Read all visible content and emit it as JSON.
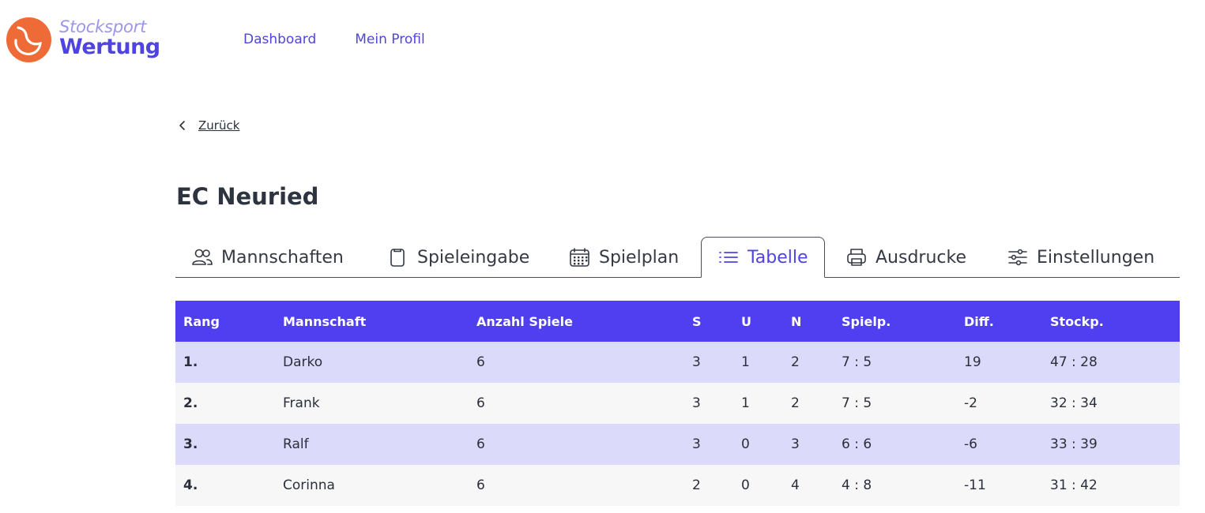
{
  "brand": {
    "line1": "Stocksport",
    "line2": "Wertung",
    "accent": "#4f44e0",
    "logo_color": "#ee6a36"
  },
  "nav": [
    {
      "label": "Dashboard"
    },
    {
      "label": "Mein Profil"
    }
  ],
  "back_label": "Zurück",
  "page_title": "EC Neuried",
  "tabs": [
    {
      "label": "Mannschaften",
      "icon": "users-icon",
      "active": false
    },
    {
      "label": "Spieleingabe",
      "icon": "clipboard-icon",
      "active": false
    },
    {
      "label": "Spielplan",
      "icon": "calendar-icon",
      "active": false
    },
    {
      "label": "Tabelle",
      "icon": "list-icon",
      "active": true
    },
    {
      "label": "Ausdrucke",
      "icon": "printer-icon",
      "active": false
    },
    {
      "label": "Einstellungen",
      "icon": "sliders-icon",
      "active": false
    }
  ],
  "table": {
    "header_color": "#4f3ff0",
    "columns": [
      "Rang",
      "Mannschaft",
      "Anzahl Spiele",
      "S",
      "U",
      "N",
      "Spielp.",
      "Diff.",
      "Stockp."
    ],
    "rows": [
      {
        "rang": "1.",
        "mannschaft": "Darko",
        "spiele": "6",
        "s": "3",
        "u": "1",
        "n": "2",
        "spielp": "7 : 5",
        "diff": "19",
        "stockp": "47 : 28"
      },
      {
        "rang": "2.",
        "mannschaft": "Frank",
        "spiele": "6",
        "s": "3",
        "u": "1",
        "n": "2",
        "spielp": "7 : 5",
        "diff": "-2",
        "stockp": "32 : 34"
      },
      {
        "rang": "3.",
        "mannschaft": "Ralf",
        "spiele": "6",
        "s": "3",
        "u": "0",
        "n": "3",
        "spielp": "6 : 6",
        "diff": "-6",
        "stockp": "33 : 39"
      },
      {
        "rang": "4.",
        "mannschaft": "Corinna",
        "spiele": "6",
        "s": "2",
        "u": "0",
        "n": "4",
        "spielp": "4 : 8",
        "diff": "-11",
        "stockp": "31 : 42"
      }
    ]
  }
}
